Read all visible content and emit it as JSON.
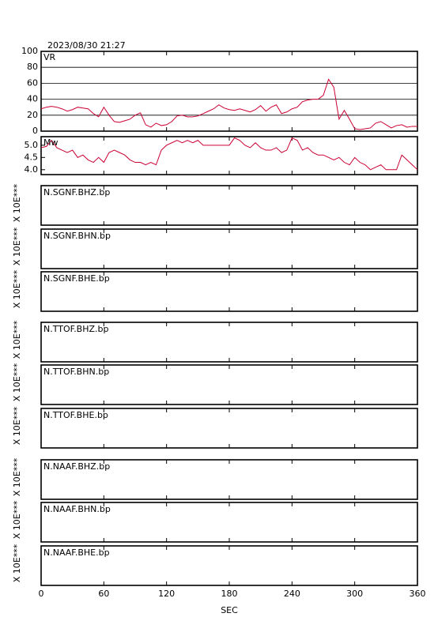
{
  "timestamp": "2023/08/30  21:27",
  "time_axis": {
    "label": "SEC",
    "xlim": [
      0,
      360
    ],
    "xticks": [
      0,
      60,
      120,
      180,
      240,
      300,
      360
    ]
  },
  "chart_data": [
    {
      "type": "line",
      "label": "VR",
      "color": "#cc0033",
      "grid": true,
      "ylim": [
        0,
        100
      ],
      "yticks": [
        0,
        20,
        40,
        60,
        80,
        100
      ],
      "x": [
        0,
        5,
        10,
        15,
        20,
        25,
        30,
        35,
        40,
        45,
        50,
        55,
        60,
        65,
        70,
        75,
        80,
        85,
        90,
        95,
        100,
        105,
        110,
        115,
        120,
        125,
        130,
        135,
        140,
        145,
        150,
        155,
        160,
        165,
        170,
        175,
        180,
        185,
        190,
        195,
        200,
        205,
        210,
        215,
        220,
        225,
        230,
        235,
        240,
        245,
        250,
        255,
        260,
        265,
        270,
        275,
        280,
        285,
        290,
        295,
        300,
        305,
        310,
        315,
        320,
        325,
        330,
        335,
        340,
        345,
        350,
        355,
        360
      ],
      "values": [
        28,
        30,
        31,
        30,
        28,
        25,
        27,
        30,
        29,
        28,
        22,
        18,
        30,
        20,
        12,
        11,
        13,
        15,
        20,
        23,
        8,
        5,
        10,
        7,
        8,
        12,
        19,
        20,
        18,
        18,
        19,
        22,
        25,
        28,
        33,
        29,
        27,
        26,
        28,
        26,
        24,
        27,
        32,
        25,
        30,
        33,
        22,
        24,
        28,
        30,
        37,
        39,
        40,
        40,
        45,
        65,
        55,
        15,
        26,
        15,
        3,
        2,
        3,
        4,
        10,
        12,
        8,
        4,
        7,
        8,
        5,
        6,
        6
      ]
    },
    {
      "type": "line",
      "label": "Mw",
      "color": "#cc0033",
      "grid": false,
      "ylim": [
        3.8,
        5.35
      ],
      "yticks": [
        {
          "value": 4,
          "label": "4.0"
        },
        4.5,
        {
          "value": 5,
          "label": "5.0"
        }
      ],
      "x": [
        0,
        5,
        10,
        15,
        20,
        25,
        30,
        35,
        40,
        45,
        50,
        55,
        60,
        65,
        70,
        75,
        80,
        85,
        90,
        95,
        100,
        105,
        110,
        115,
        120,
        125,
        130,
        135,
        140,
        145,
        150,
        155,
        160,
        165,
        170,
        175,
        180,
        185,
        190,
        195,
        200,
        205,
        210,
        215,
        220,
        225,
        230,
        235,
        240,
        245,
        250,
        255,
        260,
        265,
        270,
        275,
        280,
        285,
        290,
        295,
        300,
        305,
        310,
        315,
        320,
        325,
        330,
        335,
        340,
        345,
        350,
        355,
        360
      ],
      "values": [
        4.9,
        4.95,
        5.2,
        4.9,
        4.8,
        4.7,
        4.8,
        4.5,
        4.6,
        4.4,
        4.3,
        4.5,
        4.3,
        4.7,
        4.8,
        4.7,
        4.6,
        4.4,
        4.3,
        4.3,
        4.2,
        4.3,
        4.2,
        4.8,
        5.0,
        5.1,
        5.2,
        5.1,
        5.2,
        5.1,
        5.2,
        5.0,
        5.0,
        5.0,
        5.0,
        5.0,
        5.0,
        5.3,
        5.2,
        5.0,
        4.9,
        5.1,
        4.9,
        4.8,
        4.8,
        4.9,
        4.7,
        4.8,
        5.3,
        5.2,
        4.8,
        4.9,
        4.7,
        4.6,
        4.6,
        4.5,
        4.4,
        4.5,
        4.3,
        4.2,
        4.5,
        4.3,
        4.2,
        4.0,
        4.1,
        4.2,
        4.0,
        4.0,
        4.0,
        4.6,
        4.4,
        4.2,
        4.0
      ]
    }
  ],
  "waveform_panels": [
    {
      "label": "N.SGNF.BHZ.bp",
      "scale_label": "X 10E***"
    },
    {
      "label": "N.SGNF.BHN.bp",
      "scale_label": "X 10E***"
    },
    {
      "label": "N.SGNF.BHE.bp",
      "scale_label": "X 10E***"
    },
    {
      "label": "N.TTOF.BHZ.bp",
      "scale_label": "X 10E***"
    },
    {
      "label": "N.TTOF.BHN.bp",
      "scale_label": "X 10E***"
    },
    {
      "label": "N.TTOF.BHE.bp",
      "scale_label": "X 10E***"
    },
    {
      "label": "N.NAAF.BHZ.bp",
      "scale_label": "X 10E***"
    },
    {
      "label": "N.NAAF.BHN.bp",
      "scale_label": "X 10E***"
    },
    {
      "label": "N.NAAF.BHE.bp",
      "scale_label": "X 10E***"
    }
  ]
}
